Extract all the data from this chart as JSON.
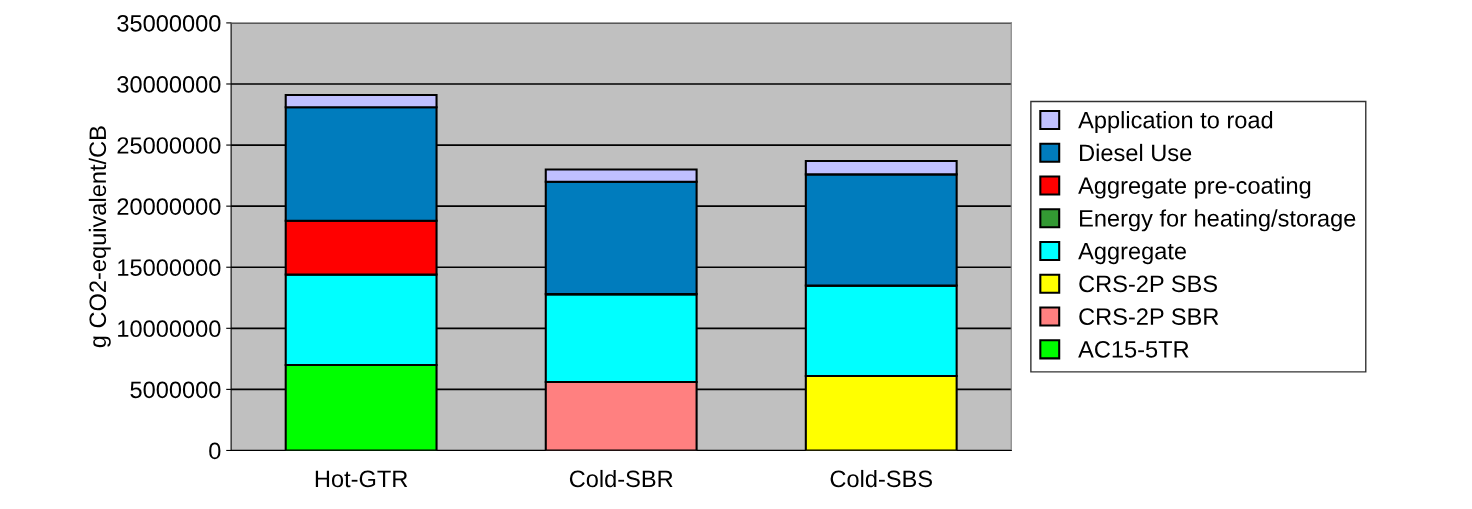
{
  "chart_data": {
    "type": "bar",
    "stacked": true,
    "ylabel": "g CO2-equivalent/CB",
    "categories": [
      "Hot-GTR",
      "Cold-SBR",
      "Cold-SBS"
    ],
    "series": [
      {
        "name": "AC15-5TR",
        "color": "#00ff00",
        "values": [
          7000000,
          0,
          0
        ]
      },
      {
        "name": "CRS-2P SBR",
        "color": "#ff8080",
        "values": [
          0,
          5600000,
          0
        ]
      },
      {
        "name": "CRS-2P SBS",
        "color": "#ffff00",
        "values": [
          0,
          0,
          6100000
        ]
      },
      {
        "name": "Aggregate",
        "color": "#00ffff",
        "values": [
          7400000,
          7200000,
          7400000
        ]
      },
      {
        "name": "Energy for heating/storage",
        "color": "#339933",
        "values": [
          0,
          0,
          0
        ]
      },
      {
        "name": "Aggregate pre-coating",
        "color": "#ff0000",
        "values": [
          4400000,
          0,
          0
        ]
      },
      {
        "name": "Diesel Use",
        "color": "#007cbd",
        "values": [
          9300000,
          9200000,
          9100000
        ]
      },
      {
        "name": "Application to road",
        "color": "#c0c0ff",
        "values": [
          1000000,
          1000000,
          1100000
        ]
      }
    ],
    "ylim": [
      0,
      35000000
    ],
    "yticks": [
      0,
      5000000,
      10000000,
      15000000,
      20000000,
      25000000,
      30000000,
      35000000
    ],
    "grid": "y",
    "legend": "right"
  }
}
